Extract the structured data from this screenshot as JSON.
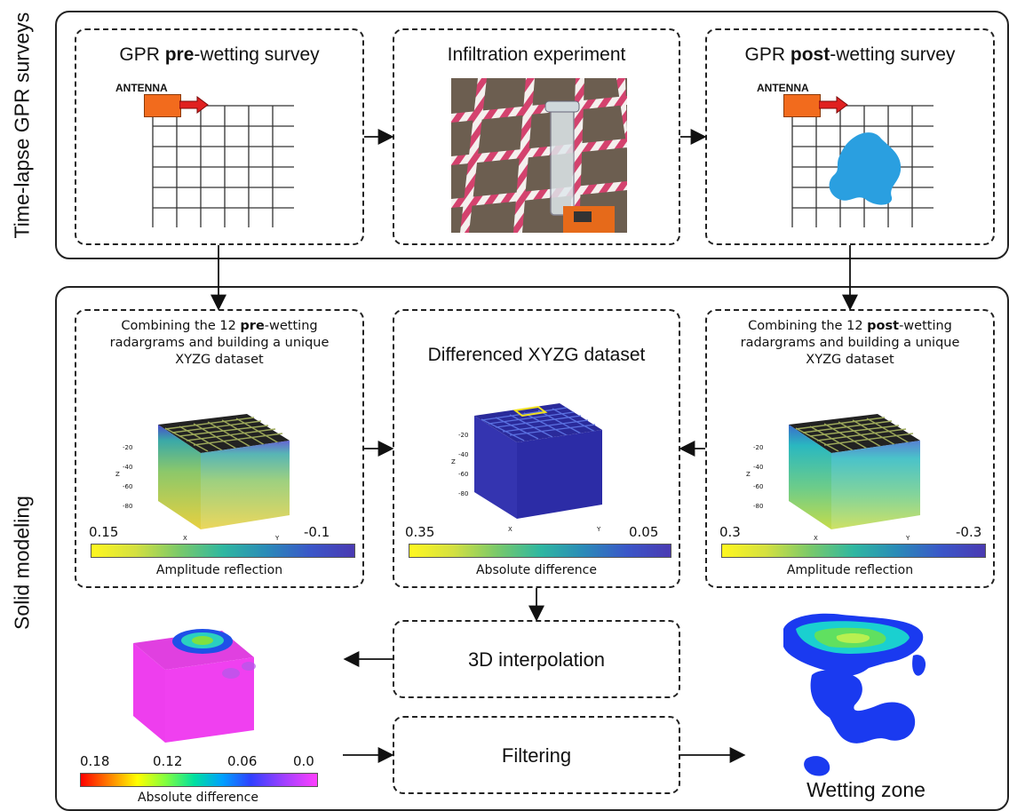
{
  "labels": {
    "top_section": "Time-lapse GPR surveys",
    "bottom_section": "Solid modeling"
  },
  "pre_survey": {
    "title_a": "GPR ",
    "title_b": "pre",
    "title_c": "-wetting survey",
    "antenna": "ANTENNA"
  },
  "infiltration": {
    "title": "Infiltration experiment"
  },
  "post_survey": {
    "title_a": "GPR ",
    "title_b": "post",
    "title_c": "-wetting survey",
    "antenna": "ANTENNA"
  },
  "pre_combine": {
    "line1_a": "Combining the 12 ",
    "line1_b": "pre",
    "line1_c": "-wetting",
    "line2": "radargrams and building a unique",
    "line3": "XYZG dataset",
    "cb_min": "0.15",
    "cb_max": "-0.1",
    "cb_label": "Amplitude reflection"
  },
  "diff": {
    "title": "Differenced XYZG dataset",
    "cb_min": "0.35",
    "cb_max": "0.05",
    "cb_label": "Absolute difference"
  },
  "post_combine": {
    "line1_a": "Combining the 12 ",
    "line1_b": "post",
    "line1_c": "-wetting",
    "line2": "radargrams and building a unique",
    "line3": "XYZG dataset",
    "cb_min": "0.3",
    "cb_max": "-0.3",
    "cb_label": "Amplitude reflection"
  },
  "interp": {
    "title": "3D interpolation"
  },
  "filter": {
    "title": "Filtering"
  },
  "wetting": {
    "title": "Wetting zone"
  },
  "interp_cb": {
    "t1": "0.18",
    "t2": "0.12",
    "t3": "0.06",
    "t4": "0.0",
    "label": "Absolute difference"
  },
  "cube_ticks": {
    "z": [
      "-20",
      "-40",
      "-60",
      "-80"
    ],
    "x": [
      "20",
      "40",
      "60",
      "80",
      "100"
    ],
    "y": [
      "0",
      "20",
      "40",
      "60",
      "80"
    ],
    "z_label": "Z",
    "x_label": "X",
    "y_label": "Y"
  },
  "colors": {
    "antenna": "#f26b1d",
    "arrow": "#e02020",
    "wet": "#2a9fe0"
  }
}
